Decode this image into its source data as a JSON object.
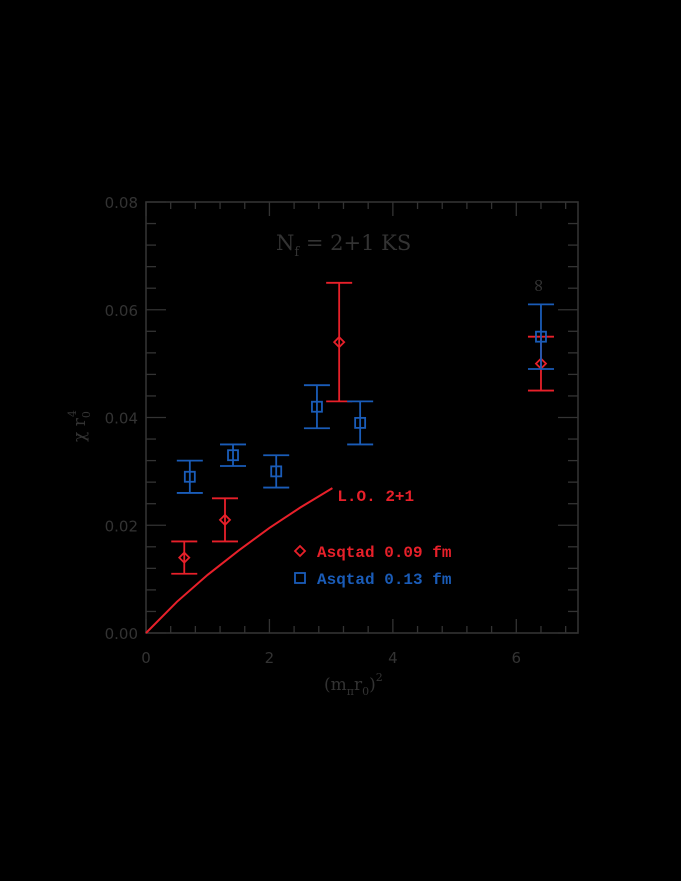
{
  "colors": {
    "background": "#000000",
    "axis": "#333333",
    "red": "#e8202a",
    "blue": "#1a5cb8"
  },
  "chart_data": {
    "type": "scatter",
    "title": "N_f = 2+1 KS",
    "title_parts": {
      "main": "N",
      "sub": "f",
      "rest": " = 2+1 KS"
    },
    "xlabel": "(m_π r_0)^2",
    "ylabel": "χ r_0^4",
    "xlim": [
      0,
      7
    ],
    "ylim": [
      0,
      0.08
    ],
    "x_ticks": [
      0,
      2,
      4,
      6
    ],
    "x_tick_labels": [
      "0",
      "2",
      "4",
      "6"
    ],
    "y_ticks": [
      0,
      0.02,
      0.04,
      0.06,
      0.08
    ],
    "y_tick_labels": [
      "0.00",
      "0.02",
      "0.04",
      "0.06",
      "0.08"
    ],
    "x_minor_step": 0.4,
    "y_minor_step": 0.004,
    "grid": false,
    "legend_position": "inside lower right",
    "series": [
      {
        "name": "Asqtad 0.09 fm",
        "marker": "diamond",
        "color": "#e8202a",
        "points": [
          {
            "x": 0.62,
            "y": 0.014,
            "ylo": 0.011,
            "yhi": 0.017
          },
          {
            "x": 1.28,
            "y": 0.021,
            "ylo": 0.017,
            "yhi": 0.025
          },
          {
            "x": 3.13,
            "y": 0.054,
            "ylo": 0.043,
            "yhi": 0.065
          },
          {
            "x": 6.4,
            "y": 0.05,
            "ylo": 0.045,
            "yhi": 0.055
          }
        ]
      },
      {
        "name": "Asqtad 0.13 fm",
        "marker": "square",
        "color": "#1a5cb8",
        "points": [
          {
            "x": 0.71,
            "y": 0.029,
            "ylo": 0.026,
            "yhi": 0.032
          },
          {
            "x": 1.41,
            "y": 0.033,
            "ylo": 0.031,
            "yhi": 0.035
          },
          {
            "x": 2.11,
            "y": 0.03,
            "ylo": 0.027,
            "yhi": 0.033
          },
          {
            "x": 2.77,
            "y": 0.042,
            "ylo": 0.038,
            "yhi": 0.046
          },
          {
            "x": 3.47,
            "y": 0.039,
            "ylo": 0.035,
            "yhi": 0.043
          },
          {
            "x": 6.4,
            "y": 0.055,
            "ylo": 0.049,
            "yhi": 0.061
          }
        ]
      },
      {
        "name": "L.O. 2+1",
        "type": "line",
        "color": "#e8202a",
        "points": [
          {
            "x": 0.0,
            "y": 0.0
          },
          {
            "x": 0.5,
            "y": 0.0058
          },
          {
            "x": 1.0,
            "y": 0.0108
          },
          {
            "x": 1.5,
            "y": 0.0153
          },
          {
            "x": 2.0,
            "y": 0.0195
          },
          {
            "x": 2.5,
            "y": 0.0233
          },
          {
            "x": 3.02,
            "y": 0.0269
          }
        ]
      }
    ],
    "annotations": [
      {
        "text": "L.O. 2+1",
        "x": 3.1,
        "y": 0.0245,
        "color": "#e8202a"
      },
      {
        "text": "∞",
        "x": 6.45,
        "y": 0.0645,
        "color": "#333333",
        "rotated": true
      }
    ],
    "legend": [
      {
        "marker": "diamond",
        "label": "Asqtad 0.09 fm",
        "color": "#e8202a"
      },
      {
        "marker": "square",
        "label": "Asqtad 0.13 fm",
        "color": "#1a5cb8"
      }
    ]
  }
}
